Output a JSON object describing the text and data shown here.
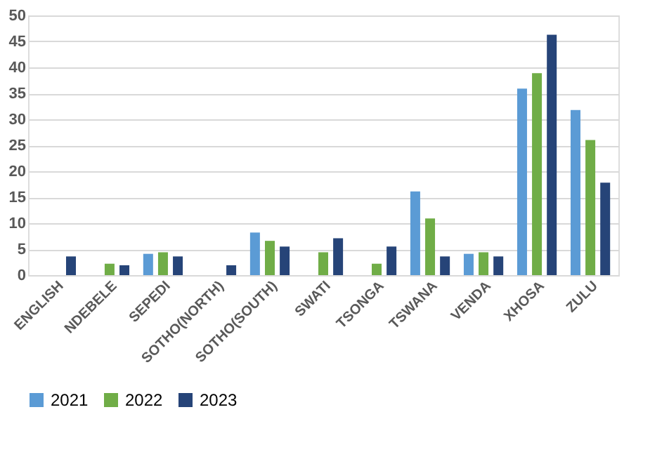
{
  "chart_data": {
    "type": "bar",
    "categories": [
      "ENGLISH",
      "NDEBELE",
      "SEPEDI",
      "SOTHO(NORTH)",
      "SOTHO(SOUTH)",
      "SWATI",
      "TSONGA",
      "TSWANA",
      "VENDA",
      "XHOSA",
      "ZULU"
    ],
    "series": [
      {
        "name": "2021",
        "color": "#5b9bd5",
        "values": [
          0,
          0,
          4.1,
          0,
          8.2,
          0,
          0,
          16.1,
          4.1,
          35.9,
          31.8
        ]
      },
      {
        "name": "2022",
        "color": "#70ad47",
        "values": [
          0,
          2.2,
          4.4,
          0,
          6.6,
          4.4,
          2.2,
          10.9,
          4.4,
          38.9,
          26.0
        ]
      },
      {
        "name": "2023",
        "color": "#264478",
        "values": [
          3.6,
          1.9,
          3.6,
          1.9,
          5.5,
          7.1,
          5.5,
          3.6,
          3.6,
          46.3,
          17.8
        ]
      }
    ],
    "ylim": [
      0,
      50
    ],
    "yticks": [
      0,
      5,
      10,
      15,
      20,
      25,
      30,
      35,
      40,
      45,
      50
    ],
    "grid": "y",
    "legend": "bottom"
  }
}
